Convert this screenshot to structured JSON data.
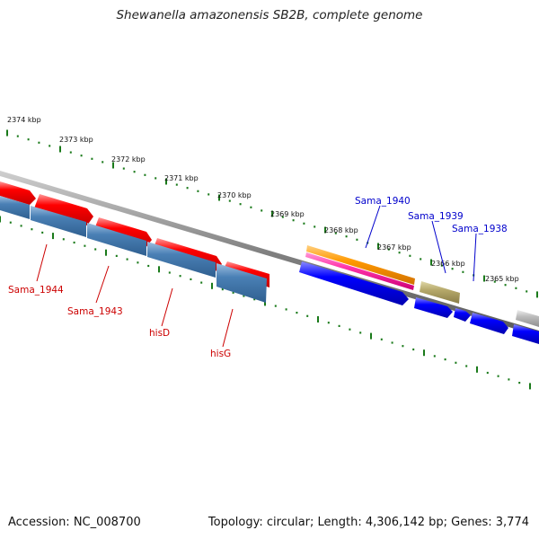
{
  "title": "Shewanella amazonensis SB2B, complete genome",
  "footer": {
    "accession": "Accession: NC_008700",
    "summary": "Topology: circular; Length: 4,306,142 bp; Genes: 3,774"
  },
  "colors": {
    "reverse_gene": "#ff0000",
    "reverse_cds": "#4a80b5",
    "forward_cds": "#0000ff",
    "orange_feature": "#ff9900",
    "pink_feature": "#ff33aa",
    "olive_feature": "#b5a86a",
    "grey_feature": "#bbbbbb",
    "backbone": "#888888",
    "tick": "#1a7a1a",
    "reverse_label": "#cc0000",
    "forward_label": "#0000cc"
  },
  "kbp_labels": [
    "2374 kbp",
    "2373 kbp",
    "2372 kbp",
    "2371 kbp",
    "2370 kbp",
    "2369 kbp",
    "2368 kbp",
    "2367 kbp",
    "2366 kbp",
    "2365 kbp"
  ],
  "reverse_genes": [
    "Sama_1944",
    "Sama_1943",
    "hisD",
    "hisG"
  ],
  "forward_genes": [
    "Sama_1940",
    "Sama_1939",
    "Sama_1938"
  ]
}
